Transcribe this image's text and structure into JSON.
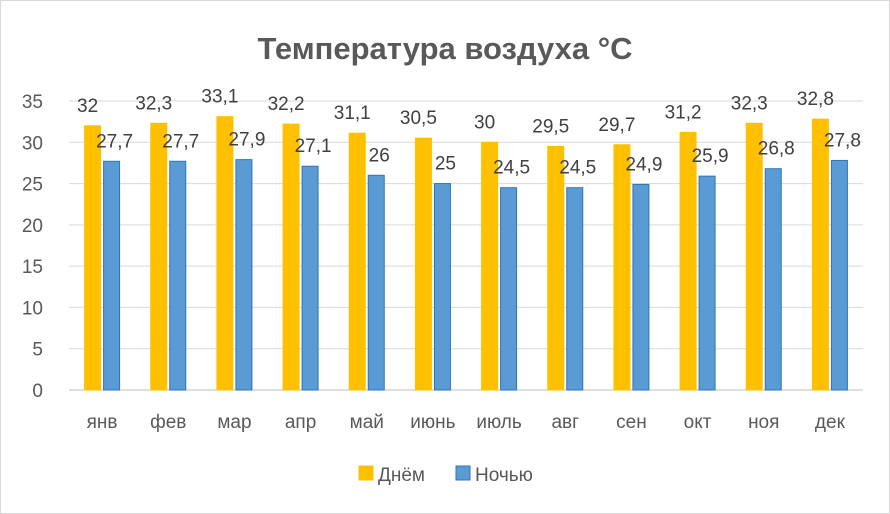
{
  "chart_data": {
    "type": "bar",
    "title": "Температура воздуха °C",
    "categories": [
      "янв",
      "фев",
      "мар",
      "апр",
      "май",
      "июнь",
      "июль",
      "авг",
      "сен",
      "окт",
      "ноя",
      "дек"
    ],
    "series": [
      {
        "name": "Днём",
        "color": "#FFC000",
        "border": "#FFC000",
        "values": [
          32,
          32.3,
          33.1,
          32.2,
          31.1,
          30.5,
          30,
          29.5,
          29.7,
          31.2,
          32.3,
          32.8
        ],
        "labels": [
          "32",
          "32,3",
          "33,1",
          "32,2",
          "31,1",
          "30,5",
          "30",
          "29,5",
          "29,7",
          "31,2",
          "32,3",
          "32,8"
        ]
      },
      {
        "name": "Ночью",
        "color": "#5B9BD5",
        "border": "#2E75B6",
        "values": [
          27.7,
          27.7,
          27.9,
          27.1,
          26,
          25,
          24.5,
          24.5,
          24.9,
          25.9,
          26.8,
          27.8
        ],
        "labels": [
          "27,7",
          "27,7",
          "27,9",
          "27,1",
          "26",
          "25",
          "24,5",
          "24,5",
          "24,9",
          "25,9",
          "26,8",
          "27,8"
        ]
      }
    ],
    "y_ticks": [
      "0",
      "5",
      "10",
      "15",
      "20",
      "25",
      "30",
      "35"
    ],
    "ylim": [
      0,
      35
    ],
    "grid": true,
    "legend": "bottom"
  }
}
